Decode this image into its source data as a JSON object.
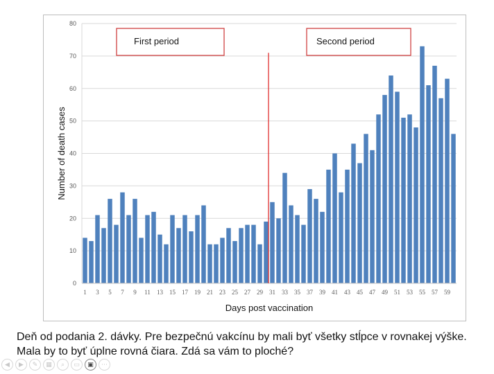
{
  "chart_data": {
    "type": "bar",
    "title": "",
    "xlabel": "Days post vaccination",
    "ylabel": "Number of death cases",
    "ylim": [
      0,
      80
    ],
    "yticks": [
      0,
      10,
      20,
      30,
      40,
      50,
      60,
      70,
      80
    ],
    "grid": true,
    "bar_color": "#4f81bd",
    "categories": [
      1,
      2,
      3,
      4,
      5,
      6,
      7,
      8,
      9,
      10,
      11,
      12,
      13,
      14,
      15,
      16,
      17,
      18,
      19,
      20,
      21,
      22,
      23,
      24,
      25,
      26,
      27,
      28,
      29,
      30,
      31,
      32,
      33,
      34,
      35,
      36,
      37,
      38,
      39,
      40,
      41,
      42,
      43,
      44,
      45,
      46,
      47,
      48,
      49,
      50,
      51,
      52,
      53,
      54,
      55,
      56,
      57,
      58,
      59,
      60
    ],
    "xtick_labels": [
      "1",
      "3",
      "5",
      "7",
      "9",
      "11",
      "13",
      "15",
      "17",
      "19",
      "21",
      "23",
      "25",
      "27",
      "29",
      "31",
      "33",
      "35",
      "37",
      "39",
      "41",
      "43",
      "45",
      "47",
      "49",
      "51",
      "53",
      "55",
      "57",
      "59"
    ],
    "values": [
      14,
      13,
      21,
      17,
      26,
      18,
      28,
      21,
      26,
      14,
      21,
      22,
      15,
      12,
      21,
      17,
      21,
      16,
      21,
      24,
      12,
      12,
      14,
      17,
      13,
      17,
      18,
      18,
      12,
      19,
      25,
      20,
      34,
      24,
      21,
      18,
      29,
      26,
      22,
      35,
      40,
      28,
      35,
      43,
      37,
      46,
      41,
      52,
      58,
      64,
      59,
      51,
      52,
      48,
      73,
      61,
      67,
      57,
      63,
      46
    ],
    "divider": {
      "between_days": [
        30,
        31
      ],
      "color": "#e03030"
    },
    "annotations": [
      {
        "text": "First period",
        "position": "top-left"
      },
      {
        "text": "Second period",
        "position": "top-right"
      }
    ]
  },
  "caption": {
    "line1": "Deň od podania 2. dávky.  Pre bezpečnú vakcínu by mali byť všetky stĺpce  v rovnakej výške.",
    "line2": "Mala by to byť  úplne rovná čiara. Zdá sa vám to ploché?"
  },
  "toolbar": {
    "buttons": [
      {
        "icon": "previous-icon",
        "glyph": "◀"
      },
      {
        "icon": "next-icon",
        "glyph": "▶"
      },
      {
        "icon": "pen-icon",
        "glyph": "✎"
      },
      {
        "icon": "slides-icon",
        "glyph": "▦"
      },
      {
        "icon": "zoom-icon",
        "glyph": "⌕"
      },
      {
        "icon": "subtitles-icon",
        "glyph": "▭"
      },
      {
        "icon": "camera-icon",
        "glyph": "▣"
      },
      {
        "icon": "more-icon",
        "glyph": "⋯"
      }
    ]
  }
}
